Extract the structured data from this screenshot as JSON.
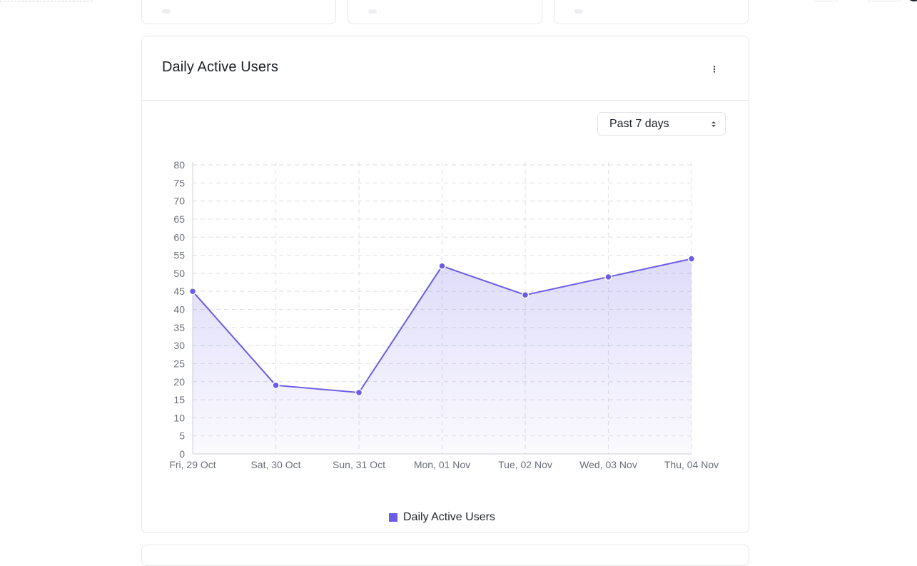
{
  "card": {
    "title": "Daily Active Users",
    "range_selected": "Past 7 days"
  },
  "chart_data": {
    "type": "area",
    "title": "",
    "xlabel": "",
    "ylabel": "",
    "categories": [
      "Fri, 29 Oct",
      "Sat, 30 Oct",
      "Sun, 31 Oct",
      "Mon, 01 Nov",
      "Tue, 02 Nov",
      "Wed, 03 Nov",
      "Thu, 04 Nov"
    ],
    "series": [
      {
        "name": "Daily Active Users",
        "values": [
          45,
          19,
          17,
          52,
          44,
          49,
          54
        ],
        "color": "#6b5ce7"
      }
    ],
    "ylim": [
      0,
      80
    ],
    "yticks": [
      0,
      5,
      10,
      15,
      20,
      25,
      30,
      35,
      40,
      45,
      50,
      55,
      60,
      65,
      70,
      75,
      80
    ],
    "grid": "dashed",
    "legend": "bottom-center"
  },
  "colors": {
    "accent": "#6b5ce7",
    "grid": "#e3e4e8",
    "tick_text": "#6b6f76"
  },
  "icons": {
    "menu": "vertical-dots-icon",
    "select": "updown-chevron-icon"
  }
}
